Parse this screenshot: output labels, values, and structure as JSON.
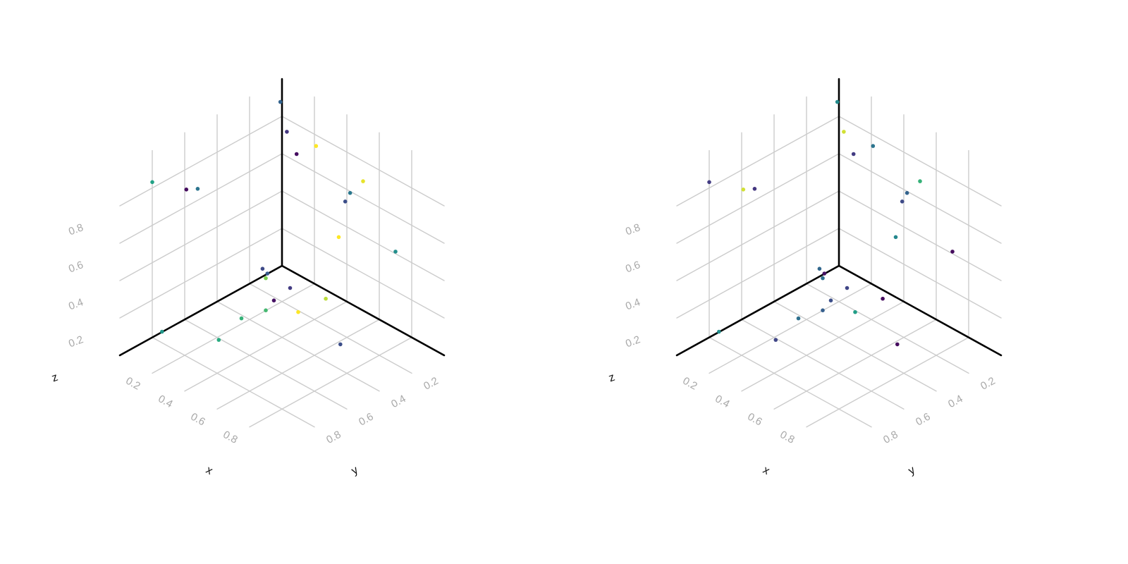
{
  "chart_data": [
    {
      "type": "scatter",
      "projection": "3d",
      "xlabel": "x",
      "ylabel": "y",
      "zlabel": "z",
      "xlim": [
        0,
        1
      ],
      "ylim": [
        0,
        1
      ],
      "zlim": [
        0,
        1
      ],
      "x_ticks": [
        "0.2",
        "0.4",
        "0.6",
        "0.8"
      ],
      "y_ticks": [
        "0.2",
        "0.4",
        "0.6",
        "0.8"
      ],
      "z_ticks": [
        "0.2",
        "0.4",
        "0.6",
        "0.8"
      ],
      "grid": true,
      "colormap": "viridis",
      "points": [
        {
          "x": 0.04,
          "y": 0.05,
          "z": 0.92,
          "c": 0.4
        },
        {
          "x": 0.25,
          "y": 0.04,
          "z": 0.78,
          "c": 1.0
        },
        {
          "x": 0.07,
          "y": 0.04,
          "z": 0.77,
          "c": 0.2
        },
        {
          "x": 0.12,
          "y": 0.03,
          "z": 0.67,
          "c": 0.05
        },
        {
          "x": 0.45,
          "y": 0.03,
          "z": 0.62,
          "c": 0.5
        },
        {
          "x": 0.42,
          "y": 0.03,
          "z": 0.56,
          "c": 0.3
        },
        {
          "x": 0.55,
          "y": 0.05,
          "z": 0.74,
          "c": 0.98
        },
        {
          "x": 0.73,
          "y": 0.03,
          "z": 0.44,
          "c": 0.62
        },
        {
          "x": 0.38,
          "y": 0.03,
          "z": 0.35,
          "c": 1.0
        },
        {
          "x": 0.03,
          "y": 0.83,
          "z": 0.86,
          "c": 0.72
        },
        {
          "x": 0.03,
          "y": 0.62,
          "z": 0.72,
          "c": 0.04
        },
        {
          "x": 0.03,
          "y": 0.55,
          "z": 0.69,
          "c": 0.48
        },
        {
          "x": 0.04,
          "y": 0.16,
          "z": 0.08,
          "c": 0.28
        },
        {
          "x": 0.04,
          "y": 0.13,
          "z": 0.04,
          "c": 0.36
        },
        {
          "x": 0.04,
          "y": 0.14,
          "z": 0.02,
          "c": 0.88
        },
        {
          "x": 0.04,
          "y": 0.78,
          "z": 0.04,
          "c": 0.66
        },
        {
          "x": 0.2,
          "y": 0.45,
          "z": 0.03,
          "c": 0.78
        },
        {
          "x": 0.17,
          "y": 0.12,
          "z": 0.02,
          "c": 0.22
        },
        {
          "x": 0.35,
          "y": 0.08,
          "z": 0.03,
          "c": 0.94
        },
        {
          "x": 0.2,
          "y": 0.25,
          "z": 0.03,
          "c": 0.06
        },
        {
          "x": 0.23,
          "y": 0.33,
          "z": 0.03,
          "c": 0.8
        },
        {
          "x": 0.34,
          "y": 0.24,
          "z": 0.03,
          "c": 1.0
        },
        {
          "x": 0.65,
          "y": 0.29,
          "z": 0.03,
          "c": 0.3
        },
        {
          "x": 0.25,
          "y": 0.64,
          "z": 0.03,
          "c": 0.76
        }
      ]
    },
    {
      "type": "scatter",
      "projection": "3d",
      "xlabel": "x",
      "ylabel": "y",
      "zlabel": "z",
      "xlim": [
        0,
        1
      ],
      "ylim": [
        0,
        1
      ],
      "zlim": [
        0,
        1
      ],
      "x_ticks": [
        "0.2",
        "0.4",
        "0.6",
        "0.8"
      ],
      "y_ticks": [
        "0.2",
        "0.4",
        "0.6",
        "0.8"
      ],
      "z_ticks": [
        "0.2",
        "0.4",
        "0.6",
        "0.8"
      ],
      "grid": true,
      "colormap": "viridis",
      "points": [
        {
          "x": 0.04,
          "y": 0.05,
          "z": 0.92,
          "c": 0.6
        },
        {
          "x": 0.25,
          "y": 0.04,
          "z": 0.78,
          "c": 0.48
        },
        {
          "x": 0.07,
          "y": 0.04,
          "z": 0.77,
          "c": 0.96
        },
        {
          "x": 0.12,
          "y": 0.03,
          "z": 0.67,
          "c": 0.22
        },
        {
          "x": 0.45,
          "y": 0.03,
          "z": 0.62,
          "c": 0.4
        },
        {
          "x": 0.42,
          "y": 0.03,
          "z": 0.56,
          "c": 0.28
        },
        {
          "x": 0.55,
          "y": 0.05,
          "z": 0.74,
          "c": 0.78
        },
        {
          "x": 0.73,
          "y": 0.03,
          "z": 0.44,
          "c": 0.04
        },
        {
          "x": 0.38,
          "y": 0.03,
          "z": 0.35,
          "c": 0.58
        },
        {
          "x": 0.03,
          "y": 0.83,
          "z": 0.86,
          "c": 0.22
        },
        {
          "x": 0.03,
          "y": 0.62,
          "z": 0.72,
          "c": 0.96
        },
        {
          "x": 0.03,
          "y": 0.55,
          "z": 0.69,
          "c": 0.2
        },
        {
          "x": 0.04,
          "y": 0.16,
          "z": 0.08,
          "c": 0.42
        },
        {
          "x": 0.04,
          "y": 0.13,
          "z": 0.04,
          "c": 0.06
        },
        {
          "x": 0.04,
          "y": 0.14,
          "z": 0.02,
          "c": 0.45
        },
        {
          "x": 0.04,
          "y": 0.78,
          "z": 0.04,
          "c": 0.62
        },
        {
          "x": 0.2,
          "y": 0.45,
          "z": 0.03,
          "c": 0.46
        },
        {
          "x": 0.17,
          "y": 0.12,
          "z": 0.02,
          "c": 0.26
        },
        {
          "x": 0.35,
          "y": 0.08,
          "z": 0.03,
          "c": 0.04
        },
        {
          "x": 0.2,
          "y": 0.25,
          "z": 0.03,
          "c": 0.3
        },
        {
          "x": 0.23,
          "y": 0.33,
          "z": 0.03,
          "c": 0.38
        },
        {
          "x": 0.34,
          "y": 0.24,
          "z": 0.03,
          "c": 0.7
        },
        {
          "x": 0.65,
          "y": 0.29,
          "z": 0.03,
          "c": 0.04
        },
        {
          "x": 0.25,
          "y": 0.64,
          "z": 0.03,
          "c": 0.26
        }
      ]
    }
  ]
}
